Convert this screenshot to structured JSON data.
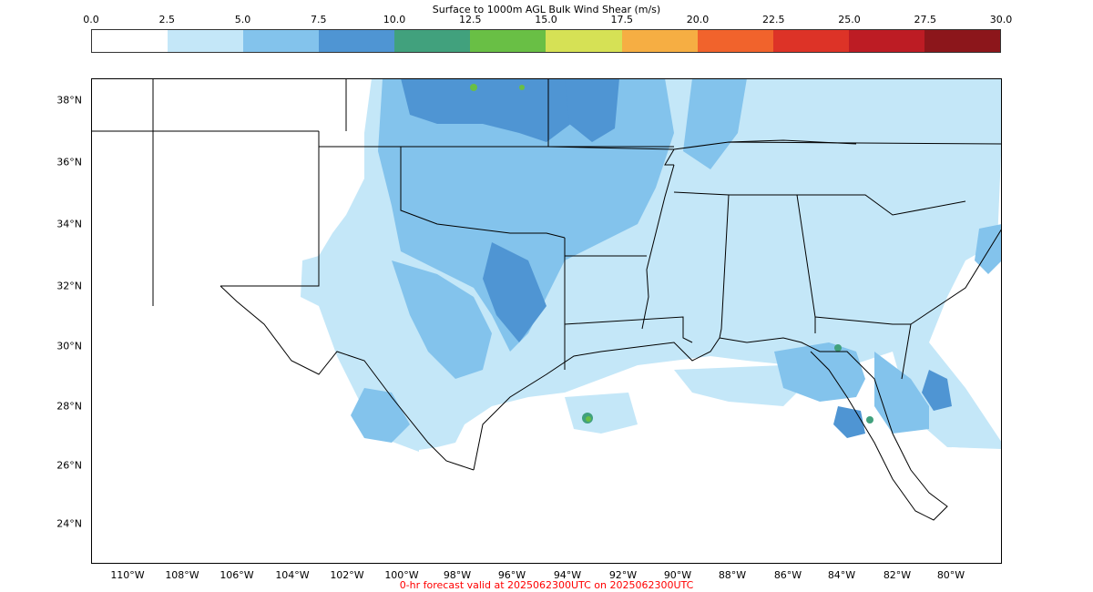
{
  "colorbar": {
    "title": "Surface to 1000m AGL Bulk Wind Shear (m/s)",
    "ticks": [
      "0.0",
      "2.5",
      "5.0",
      "7.5",
      "10.0",
      "12.5",
      "15.0",
      "17.5",
      "20.0",
      "22.5",
      "25.0",
      "27.5",
      "30.0"
    ],
    "colors": [
      "#ffffff",
      "#c4e7f8",
      "#83c3ec",
      "#4f95d3",
      "#41a17d",
      "#69bf45",
      "#d6e155",
      "#f6ae43",
      "#f1632c",
      "#dd3327",
      "#bd1c24",
      "#8c161b"
    ]
  },
  "map": {
    "lat_labels": [
      "38°N",
      "36°N",
      "34°N",
      "32°N",
      "30°N",
      "28°N",
      "26°N",
      "24°N"
    ],
    "lon_labels": [
      "110°W",
      "108°W",
      "106°W",
      "104°W",
      "102°W",
      "100°W",
      "98°W",
      "96°W",
      "94°W",
      "92°W",
      "90°W",
      "88°W",
      "86°W",
      "84°W",
      "82°W",
      "80°W"
    ]
  },
  "footer": "0-hr forecast valid at 2025062300UTC on 2025062300UTC"
}
